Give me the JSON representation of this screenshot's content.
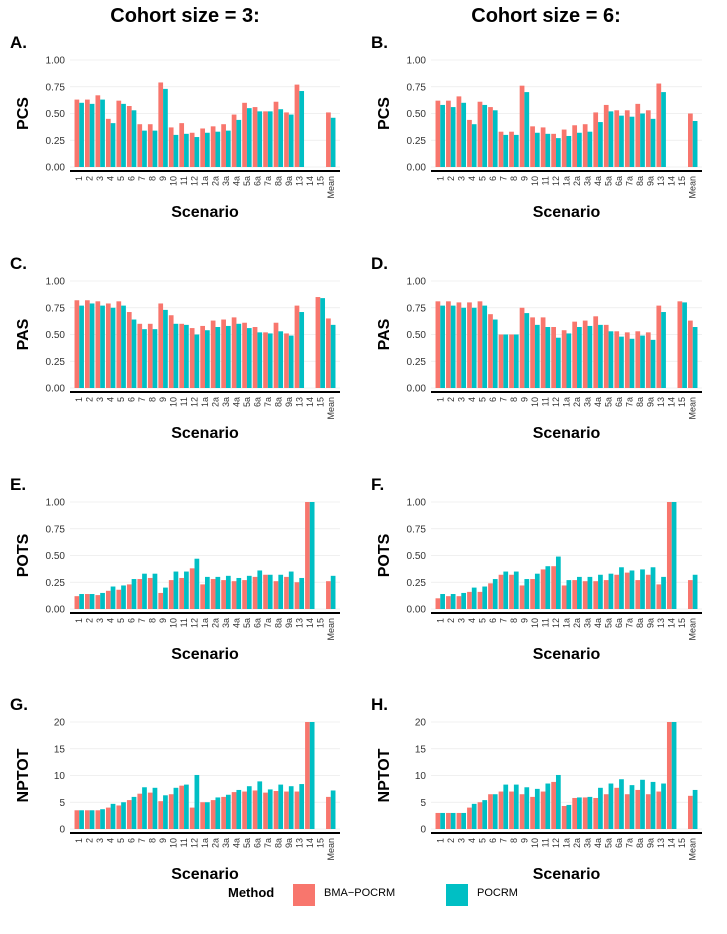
{
  "column_titles": [
    "Cohort size = 3:",
    "Cohort size = 6:"
  ],
  "legend": {
    "title": "Method",
    "items": [
      {
        "label": "BMA−POCRM",
        "color": "#F8766D"
      },
      {
        "label": "POCRM",
        "color": "#00BFC4"
      }
    ]
  },
  "chart_data": [
    {
      "type": "bar",
      "panel": "A.",
      "title": "",
      "xlabel": "Scenario",
      "ylabel": "PCS",
      "ylim": [
        0,
        1
      ],
      "yticks": [
        "0.00",
        "0.25",
        "0.50",
        "0.75",
        "1.00"
      ],
      "categories": [
        "1",
        "2",
        "3",
        "4",
        "5",
        "6",
        "7",
        "8",
        "9",
        "10",
        "11",
        "12",
        "1a",
        "2a",
        "3a",
        "4a",
        "5a",
        "6a",
        "7a",
        "8a",
        "9a",
        "13",
        "14",
        "15",
        "Mean"
      ],
      "series": [
        {
          "name": "BMA−POCRM",
          "values": [
            0.63,
            0.63,
            0.67,
            0.45,
            0.62,
            0.57,
            0.4,
            0.4,
            0.79,
            0.37,
            0.41,
            0.32,
            0.36,
            0.38,
            0.4,
            0.49,
            0.6,
            0.56,
            0.52,
            0.61,
            0.51,
            0.77,
            null,
            null,
            0.51
          ]
        },
        {
          "name": "POCRM",
          "values": [
            0.6,
            0.59,
            0.63,
            0.41,
            0.59,
            0.53,
            0.34,
            0.34,
            0.73,
            0.3,
            0.31,
            0.28,
            0.32,
            0.33,
            0.34,
            0.44,
            0.55,
            0.52,
            0.52,
            0.54,
            0.49,
            0.71,
            null,
            null,
            0.46
          ]
        }
      ]
    },
    {
      "type": "bar",
      "panel": "B.",
      "title": "",
      "xlabel": "Scenario",
      "ylabel": "PCS",
      "ylim": [
        0,
        1
      ],
      "yticks": [
        "0.00",
        "0.25",
        "0.50",
        "0.75",
        "1.00"
      ],
      "categories": [
        "1",
        "2",
        "3",
        "4",
        "5",
        "6",
        "7",
        "8",
        "9",
        "10",
        "11",
        "12",
        "1a",
        "2a",
        "3a",
        "4a",
        "5a",
        "6a",
        "7a",
        "8a",
        "9a",
        "13",
        "14",
        "15",
        "Mean"
      ],
      "series": [
        {
          "name": "BMA−POCRM",
          "values": [
            0.62,
            0.62,
            0.66,
            0.44,
            0.61,
            0.56,
            0.33,
            0.33,
            0.76,
            0.38,
            0.37,
            0.31,
            0.35,
            0.39,
            0.4,
            0.51,
            0.58,
            0.53,
            0.53,
            0.59,
            0.53,
            0.78,
            null,
            null,
            0.5
          ]
        },
        {
          "name": "POCRM",
          "values": [
            0.58,
            0.56,
            0.6,
            0.4,
            0.58,
            0.53,
            0.3,
            0.3,
            0.7,
            0.32,
            0.31,
            0.27,
            0.29,
            0.32,
            0.33,
            0.42,
            0.52,
            0.48,
            0.47,
            0.5,
            0.45,
            0.7,
            null,
            null,
            0.43
          ]
        }
      ]
    },
    {
      "type": "bar",
      "panel": "C.",
      "title": "",
      "xlabel": "Scenario",
      "ylabel": "PAS",
      "ylim": [
        0,
        1
      ],
      "yticks": [
        "0.00",
        "0.25",
        "0.50",
        "0.75",
        "1.00"
      ],
      "categories": [
        "1",
        "2",
        "3",
        "4",
        "5",
        "6",
        "7",
        "8",
        "9",
        "10",
        "11",
        "12",
        "1a",
        "2a",
        "3a",
        "4a",
        "5a",
        "6a",
        "7a",
        "8a",
        "9a",
        "13",
        "14",
        "15",
        "Mean"
      ],
      "series": [
        {
          "name": "BMA−POCRM",
          "values": [
            0.82,
            0.82,
            0.81,
            0.79,
            0.81,
            0.71,
            0.6,
            0.6,
            0.79,
            0.68,
            0.6,
            0.56,
            0.58,
            0.63,
            0.64,
            0.66,
            0.61,
            0.57,
            0.52,
            0.61,
            0.51,
            0.77,
            null,
            0.85,
            0.65
          ]
        },
        {
          "name": "POCRM",
          "values": [
            0.77,
            0.79,
            0.77,
            0.75,
            0.77,
            0.64,
            0.55,
            0.55,
            0.73,
            0.6,
            0.59,
            0.5,
            0.54,
            0.57,
            0.58,
            0.6,
            0.56,
            0.52,
            0.51,
            0.53,
            0.49,
            0.71,
            null,
            0.84,
            0.59
          ]
        }
      ]
    },
    {
      "type": "bar",
      "panel": "D.",
      "title": "",
      "xlabel": "Scenario",
      "ylabel": "PAS",
      "ylim": [
        0,
        1
      ],
      "yticks": [
        "0.00",
        "0.25",
        "0.50",
        "0.75",
        "1.00"
      ],
      "categories": [
        "1",
        "2",
        "3",
        "4",
        "5",
        "6",
        "7",
        "8",
        "9",
        "10",
        "11",
        "12",
        "1a",
        "2a",
        "3a",
        "4a",
        "5a",
        "6a",
        "7a",
        "8a",
        "9a",
        "13",
        "14",
        "15",
        "Mean"
      ],
      "series": [
        {
          "name": "BMA−POCRM",
          "values": [
            0.81,
            0.81,
            0.8,
            0.8,
            0.81,
            0.69,
            0.5,
            0.5,
            0.75,
            0.66,
            0.66,
            0.57,
            0.54,
            0.62,
            0.63,
            0.67,
            0.59,
            0.53,
            0.52,
            0.53,
            0.52,
            0.77,
            null,
            0.81,
            0.63
          ]
        },
        {
          "name": "POCRM",
          "values": [
            0.77,
            0.77,
            0.75,
            0.75,
            0.77,
            0.64,
            0.5,
            0.5,
            0.7,
            0.59,
            0.57,
            0.47,
            0.51,
            0.57,
            0.58,
            0.59,
            0.53,
            0.48,
            0.46,
            0.49,
            0.45,
            0.71,
            null,
            0.8,
            0.57
          ]
        }
      ]
    },
    {
      "type": "bar",
      "panel": "E.",
      "title": "",
      "xlabel": "Scenario",
      "ylabel": "POTS",
      "ylim": [
        0,
        1
      ],
      "yticks": [
        "0.00",
        "0.25",
        "0.50",
        "0.75",
        "1.00"
      ],
      "categories": [
        "1",
        "2",
        "3",
        "4",
        "5",
        "6",
        "7",
        "8",
        "9",
        "10",
        "11",
        "12",
        "1a",
        "2a",
        "3a",
        "4a",
        "5a",
        "6a",
        "7a",
        "8a",
        "9a",
        "13",
        "14",
        "15",
        "Mean"
      ],
      "series": [
        {
          "name": "BMA−POCRM",
          "values": [
            0.12,
            0.14,
            0.13,
            0.17,
            0.18,
            0.23,
            0.28,
            0.29,
            0.15,
            0.27,
            0.29,
            0.38,
            0.23,
            0.28,
            0.27,
            0.26,
            0.27,
            0.3,
            0.32,
            0.26,
            0.3,
            0.25,
            1.0,
            null,
            0.26
          ]
        },
        {
          "name": "POCRM",
          "values": [
            0.14,
            0.14,
            0.15,
            0.21,
            0.22,
            0.28,
            0.33,
            0.33,
            0.2,
            0.35,
            0.35,
            0.47,
            0.3,
            0.3,
            0.31,
            0.29,
            0.31,
            0.36,
            0.32,
            0.32,
            0.35,
            0.29,
            1.0,
            null,
            0.31
          ]
        }
      ]
    },
    {
      "type": "bar",
      "panel": "F.",
      "title": "",
      "xlabel": "Scenario",
      "ylabel": "POTS",
      "ylim": [
        0,
        1
      ],
      "yticks": [
        "0.00",
        "0.25",
        "0.50",
        "0.75",
        "1.00"
      ],
      "categories": [
        "1",
        "2",
        "3",
        "4",
        "5",
        "6",
        "7",
        "8",
        "9",
        "10",
        "11",
        "12",
        "1a",
        "2a",
        "3a",
        "4a",
        "5a",
        "6a",
        "7a",
        "8a",
        "9a",
        "13",
        "14",
        "15",
        "Mean"
      ],
      "series": [
        {
          "name": "BMA−POCRM",
          "values": [
            0.1,
            0.12,
            0.12,
            0.16,
            0.16,
            0.24,
            0.32,
            0.32,
            0.22,
            0.28,
            0.37,
            0.4,
            0.22,
            0.27,
            0.26,
            0.26,
            0.27,
            0.32,
            0.34,
            0.27,
            0.32,
            0.23,
            1.0,
            null,
            0.27
          ]
        },
        {
          "name": "POCRM",
          "values": [
            0.14,
            0.14,
            0.15,
            0.2,
            0.21,
            0.28,
            0.35,
            0.35,
            0.28,
            0.33,
            0.4,
            0.49,
            0.27,
            0.3,
            0.3,
            0.32,
            0.33,
            0.39,
            0.36,
            0.37,
            0.39,
            0.3,
            1.0,
            null,
            0.32
          ]
        }
      ]
    },
    {
      "type": "bar",
      "panel": "G.",
      "title": "",
      "xlabel": "Scenario",
      "ylabel": "NPTOT",
      "ylim": [
        0,
        20
      ],
      "yticks": [
        "0",
        "5",
        "10",
        "15",
        "20"
      ],
      "categories": [
        "1",
        "2",
        "3",
        "4",
        "5",
        "6",
        "7",
        "8",
        "9",
        "10",
        "11",
        "12",
        "1a",
        "2a",
        "3a",
        "4a",
        "5a",
        "6a",
        "7a",
        "8a",
        "9a",
        "13",
        "14",
        "15",
        "Mean"
      ],
      "series": [
        {
          "name": "BMA−POCRM",
          "values": [
            3.5,
            3.5,
            3.5,
            4.0,
            4.4,
            5.4,
            6.6,
            6.8,
            5.2,
            6.5,
            8.1,
            4.0,
            5.0,
            5.4,
            6.0,
            6.9,
            7.0,
            7.2,
            6.8,
            7.1,
            7.0,
            7.0,
            20.0,
            null,
            6.0
          ]
        },
        {
          "name": "POCRM",
          "values": [
            3.5,
            3.5,
            3.7,
            4.7,
            5.0,
            6.0,
            7.8,
            7.7,
            6.3,
            7.7,
            8.3,
            10.1,
            5.0,
            5.9,
            6.4,
            7.3,
            8.0,
            8.9,
            7.4,
            8.3,
            8.0,
            8.4,
            20.0,
            null,
            7.2
          ]
        }
      ]
    },
    {
      "type": "bar",
      "panel": "H.",
      "title": "",
      "xlabel": "Scenario",
      "ylabel": "NPTOT",
      "ylim": [
        0,
        20
      ],
      "yticks": [
        "0",
        "5",
        "10",
        "15",
        "20"
      ],
      "categories": [
        "1",
        "2",
        "3",
        "4",
        "5",
        "6",
        "7",
        "8",
        "9",
        "10",
        "11",
        "12",
        "1a",
        "2a",
        "3a",
        "4a",
        "5a",
        "6a",
        "7a",
        "8a",
        "9a",
        "13",
        "14",
        "15",
        "Mean"
      ],
      "series": [
        {
          "name": "BMA−POCRM",
          "values": [
            3.0,
            3.0,
            3.0,
            4.0,
            5.0,
            6.5,
            7.0,
            7.0,
            6.5,
            6.0,
            7.0,
            8.8,
            4.3,
            5.8,
            5.9,
            5.8,
            6.5,
            7.7,
            6.5,
            7.3,
            6.5,
            7.0,
            20.0,
            null,
            6.2
          ]
        },
        {
          "name": "POCRM",
          "values": [
            3.0,
            3.0,
            3.0,
            4.7,
            5.4,
            6.5,
            8.3,
            8.3,
            7.8,
            7.5,
            8.5,
            10.1,
            4.5,
            5.9,
            6.0,
            7.7,
            8.5,
            9.3,
            8.2,
            9.2,
            8.8,
            8.5,
            20.0,
            null,
            7.3
          ]
        }
      ]
    }
  ]
}
